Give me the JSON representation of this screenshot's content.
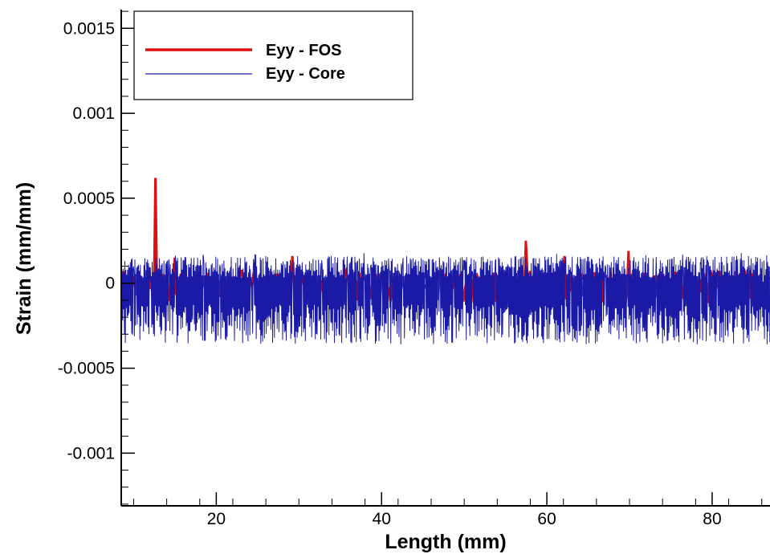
{
  "chart_data": {
    "type": "line",
    "title": "",
    "xlabel": "Length (mm)",
    "ylabel": "Strain (mm/mm)",
    "xlim": [
      8.5,
      87
    ],
    "ylim": [
      -0.00131,
      0.00161
    ],
    "x_ticks": [
      {
        "value": 20,
        "label": "20"
      },
      {
        "value": 40,
        "label": "40"
      },
      {
        "value": 60,
        "label": "60"
      },
      {
        "value": 80,
        "label": "80"
      }
    ],
    "y_ticks": [
      {
        "value": 0.0015,
        "label": "0.0015"
      },
      {
        "value": 0.001,
        "label": "0.001"
      },
      {
        "value": 0.0005,
        "label": "0.0005"
      },
      {
        "value": 0,
        "label": "0"
      },
      {
        "value": -0.0005,
        "label": "-0.0005"
      },
      {
        "value": -0.001,
        "label": "-0.001"
      }
    ],
    "legend": {
      "position": "top-left",
      "box": true
    },
    "series": [
      {
        "name": "Eyy - FOS",
        "color": "#e01010",
        "style": "thick",
        "baseline_range": [
          -0.00013,
          9e-05
        ],
        "spikes": [
          {
            "x": 12.7,
            "y": 0.00062
          },
          {
            "x": 14.9,
            "y": 0.00015
          },
          {
            "x": 29.2,
            "y": 0.00016
          },
          {
            "x": 57.4,
            "y": 0.00025
          },
          {
            "x": 62.2,
            "y": 0.00016
          },
          {
            "x": 69.9,
            "y": 0.00019
          }
        ]
      },
      {
        "name": "Eyy - Core",
        "color": "#1a1aa6",
        "style": "thin",
        "baseline_range": [
          -0.00038,
          0.00018
        ],
        "noise_low": -0.00036,
        "noise_high": 0.00016
      }
    ]
  }
}
